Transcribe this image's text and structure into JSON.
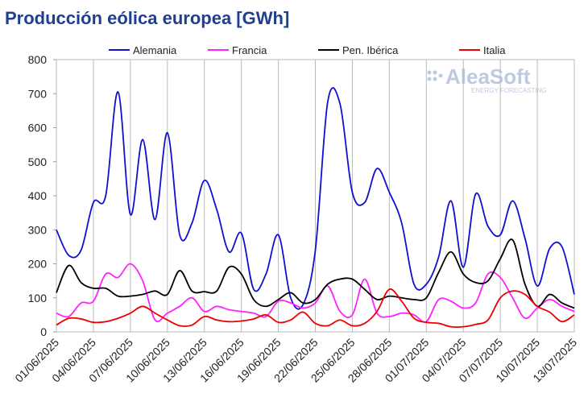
{
  "chart_data": {
    "type": "line",
    "title": "Producción eólica europea [GWh]",
    "categories": [
      "01/06/2025",
      null,
      null,
      "04/06/2025",
      null,
      null,
      "07/06/2025",
      null,
      null,
      "10/06/2025",
      null,
      null,
      "13/06/2025",
      null,
      null,
      "16/06/2025",
      null,
      null,
      "19/06/2025",
      null,
      null,
      "22/06/2025",
      null,
      null,
      "25/06/2025",
      null,
      null,
      "28/06/2025",
      null,
      null,
      "01/07/2025",
      null,
      null,
      "04/07/2025",
      null,
      null,
      "07/07/2025",
      null,
      null,
      "10/07/2025",
      null,
      null,
      "13/07/2025"
    ],
    "series": [
      {
        "name": "Alemania",
        "color": "#1010d0",
        "values": [
          300,
          225,
          240,
          380,
          400,
          705,
          345,
          565,
          330,
          585,
          285,
          320,
          445,
          360,
          235,
          290,
          125,
          170,
          285,
          100,
          80,
          240,
          675,
          670,
          410,
          380,
          480,
          410,
          320,
          140,
          140,
          220,
          385,
          190,
          405,
          310,
          285,
          385,
          275,
          135,
          245,
          250,
          110
        ]
      },
      {
        "name": "Francia",
        "color": "#ff22ff",
        "values": [
          55,
          45,
          85,
          90,
          170,
          160,
          200,
          150,
          35,
          55,
          75,
          100,
          60,
          75,
          65,
          60,
          55,
          45,
          90,
          85,
          70,
          85,
          135,
          60,
          50,
          155,
          55,
          45,
          55,
          50,
          30,
          95,
          90,
          70,
          85,
          170,
          160,
          100,
          40,
          70,
          95,
          75,
          60
        ]
      },
      {
        "name": "Pen. Ibérica",
        "color": "#000000",
        "values": [
          115,
          195,
          145,
          128,
          128,
          105,
          105,
          110,
          120,
          110,
          180,
          120,
          118,
          120,
          190,
          170,
          95,
          75,
          95,
          115,
          85,
          95,
          140,
          155,
          155,
          125,
          95,
          105,
          100,
          95,
          100,
          175,
          235,
          170,
          145,
          150,
          215,
          270,
          140,
          75,
          110,
          85,
          70
        ]
      },
      {
        "name": "Italia",
        "color": "#ee0000",
        "values": [
          20,
          40,
          38,
          28,
          30,
          40,
          55,
          75,
          55,
          35,
          18,
          20,
          45,
          35,
          30,
          32,
          38,
          50,
          28,
          35,
          58,
          25,
          18,
          35,
          18,
          25,
          60,
          125,
          90,
          40,
          28,
          25,
          15,
          15,
          22,
          35,
          100,
          120,
          110,
          75,
          58,
          30,
          50
        ]
      }
    ],
    "ylim": [
      0,
      800
    ],
    "yticks": [
      0,
      100,
      200,
      300,
      400,
      500,
      600,
      700,
      800
    ],
    "xgrid": true,
    "legend": "top",
    "logo": {
      "name": "AleaSoft",
      "tagline": "ENERGY FORECASTING"
    }
  }
}
